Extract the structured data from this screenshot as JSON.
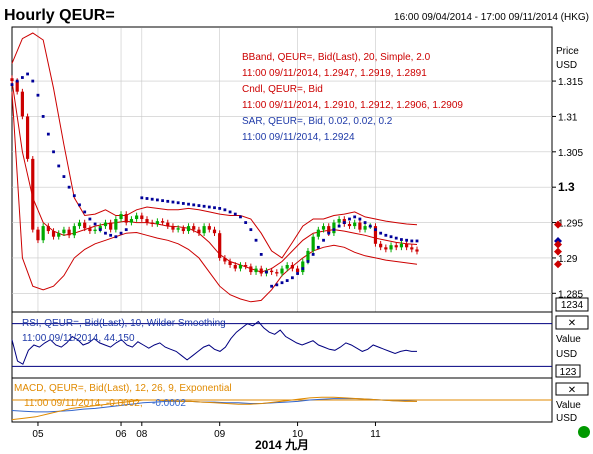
{
  "header": {
    "title": "Hourly QEUR=",
    "range": "16:00 09/04/2014 - 17:00 09/11/2014 (HKG)"
  },
  "colors": {
    "bband": "#cc0000",
    "candle_up": "#00aa00",
    "candle_down": "#cc0000",
    "sar": "#000099",
    "rsi": "#000080",
    "macd": "#e08a00",
    "signal": "#3366cc",
    "grid": "#c8c8c8",
    "status_ok": "#009900"
  },
  "main_panel": {
    "legend": [
      {
        "text": "BBand, QEUR=, Bid(Last),  20, Simple, 2.0",
        "color": "#cc0000"
      },
      {
        "text": "11:00 09/11/2014, 1.2947, 1.2919, 1.2891",
        "color": "#cc0000"
      },
      {
        "text": "Cndl, QEUR=, Bid",
        "color": "#cc0000"
      },
      {
        "text": "11:00 09/11/2014, 1.2910, 1.2912, 1.2906, 1.2909",
        "color": "#cc0000"
      },
      {
        "text": "SAR, QEUR=, Bid,  0.02, 0.02, 0.2",
        "color": "#1f3aa8"
      },
      {
        "text": "11:00 09/11/2014, 1.2924",
        "color": "#1f3aa8"
      }
    ],
    "axis_title_line1": "Price",
    "axis_title_line2": "USD",
    "ticks": [
      "1.315",
      "1.31",
      "1.305",
      "1.3",
      "1.295",
      "1.29",
      "1.285"
    ],
    "counter": "1234"
  },
  "rsi_panel": {
    "legend_line1": "RSI, QEUR=, Bid(Last),  10, Wilder Smoothing",
    "legend_line2": "11:00 09/11/2014, 44.150",
    "axis_title_line1": "Value",
    "axis_title_line2": "USD",
    "counter": "123"
  },
  "macd_panel": {
    "legend_line1": "MACD, QEUR=, Bid(Last),  12, 26, 9, Exponential",
    "legend_line2_a": "11:00 09/11/2014, -0.0002,",
    "legend_line2_b": "-0.0002",
    "axis_title_line1": "Value",
    "axis_title_line2": "USD"
  },
  "x_axis": {
    "ticks": [
      "05",
      "06",
      "08",
      "09",
      "10",
      "11"
    ],
    "title": "2014 九月"
  },
  "chart_data": {
    "type": "line",
    "price_axis": {
      "range": [
        1.2825,
        1.3225
      ],
      "ticks": [
        1.315,
        1.31,
        1.305,
        1.3,
        1.295,
        1.29,
        1.285
      ]
    },
    "x_range": [
      0,
      104
    ],
    "x_ticks": [
      {
        "label": "05",
        "x": 5
      },
      {
        "label": "06",
        "x": 21
      },
      {
        "label": "08",
        "x": 25
      },
      {
        "label": "09",
        "x": 40
      },
      {
        "label": "10",
        "x": 55
      },
      {
        "label": "11",
        "x": 70
      }
    ],
    "series": [
      {
        "name": "BBand",
        "x": [
          0,
          2,
          4,
          6,
          8,
          10,
          12,
          14,
          16,
          18,
          20,
          22,
          24,
          26,
          28,
          30,
          32,
          34,
          36,
          38,
          40,
          42,
          44,
          46,
          48,
          50,
          52,
          54,
          56,
          58,
          60,
          62,
          64,
          66,
          68,
          70,
          72,
          74,
          76,
          78
        ],
        "values": [
          1.3175,
          1.321,
          1.3218,
          1.3208,
          1.314,
          1.306,
          1.2985,
          1.296,
          1.2962,
          1.2968,
          1.296,
          1.296,
          1.2968,
          1.2972,
          1.297,
          1.2968,
          1.2968,
          1.297,
          1.2968,
          1.2965,
          1.2962,
          1.296,
          1.296,
          1.2955,
          1.2935,
          1.291,
          1.29,
          1.2922,
          1.2945,
          1.2955,
          1.2955,
          1.296,
          1.2962,
          1.2965,
          1.2958,
          1.2955,
          1.2952,
          1.295,
          1.2948,
          1.2947
        ]
      },
      {
        "name": "",
        "x": [
          0,
          2,
          4,
          6,
          8,
          10,
          12,
          14,
          16,
          18,
          20,
          22,
          24,
          26,
          28,
          30,
          32,
          34,
          36,
          38,
          40,
          42,
          44,
          46,
          48,
          50,
          52,
          54,
          56,
          58,
          60,
          62,
          64,
          66,
          68,
          70,
          72,
          74,
          76,
          78
        ],
        "values": [
          1.315,
          1.305,
          1.2985,
          1.295,
          1.2938,
          1.2932,
          1.2935,
          1.294,
          1.2945,
          1.2948,
          1.295,
          1.2952,
          1.295,
          1.295,
          1.2948,
          1.2945,
          1.2944,
          1.2942,
          1.2935,
          1.2922,
          1.2905,
          1.2895,
          1.289,
          1.2885,
          1.288,
          1.2885,
          1.2895,
          1.291,
          1.2925,
          1.2935,
          1.2938,
          1.294,
          1.2938,
          1.2935,
          1.2932,
          1.2928,
          1.2925,
          1.2922,
          1.292,
          1.2919
        ]
      },
      {
        "name": "",
        "x": [
          0,
          2,
          4,
          6,
          8,
          10,
          12,
          14,
          16,
          18,
          20,
          22,
          24,
          26,
          28,
          30,
          32,
          34,
          36,
          38,
          40,
          42,
          44,
          46,
          48,
          50,
          52,
          54,
          56,
          58,
          60,
          62,
          64,
          66,
          68,
          70,
          72,
          74,
          76,
          78
        ],
        "values": [
          1.3135,
          1.29,
          1.286,
          1.2855,
          1.286,
          1.2875,
          1.29,
          1.2912,
          1.292,
          1.2925,
          1.293,
          1.2935,
          1.2936,
          1.2932,
          1.2928,
          1.2925,
          1.292,
          1.2912,
          1.29,
          1.288,
          1.286,
          1.2848,
          1.2842,
          1.2838,
          1.284,
          1.2855,
          1.2875,
          1.2888,
          1.29,
          1.291,
          1.2915,
          1.2918,
          1.2915,
          1.2908,
          1.2903,
          1.29,
          1.2897,
          1.2895,
          1.2893,
          1.2891
        ]
      },
      {
        "name": "Cndl",
        "x": [
          0,
          1,
          2,
          3,
          4,
          5,
          6,
          7,
          8,
          9,
          10,
          11,
          12,
          13,
          14,
          15,
          16,
          17,
          18,
          19,
          20,
          21,
          22,
          23,
          24,
          25,
          26,
          27,
          28,
          29,
          30,
          31,
          32,
          33,
          34,
          35,
          36,
          37,
          38,
          39,
          40,
          41,
          42,
          43,
          44,
          45,
          46,
          47,
          48,
          49,
          50,
          51,
          52,
          53,
          54,
          55,
          56,
          57,
          58,
          59,
          60,
          61,
          62,
          63,
          64,
          65,
          66,
          67,
          68,
          69,
          70,
          71,
          72,
          73,
          74,
          75,
          76,
          77,
          78
        ],
        "values": [
          1.315,
          1.3135,
          1.31,
          1.304,
          1.294,
          1.2925,
          1.2945,
          1.2938,
          1.293,
          1.2935,
          1.294,
          1.2932,
          1.2945,
          1.295,
          1.2942,
          1.2938,
          1.294,
          1.2945,
          1.295,
          1.294,
          1.2955,
          1.2962,
          1.295,
          1.2955,
          1.296,
          1.2955,
          1.295,
          1.2948,
          1.2952,
          1.295,
          1.2945,
          1.294,
          1.2942,
          1.2938,
          1.2945,
          1.294,
          1.2935,
          1.2945,
          1.294,
          1.2935,
          1.29,
          1.2895,
          1.289,
          1.2885,
          1.289,
          1.2888,
          1.288,
          1.2885,
          1.2878,
          1.2882,
          1.288,
          1.2878,
          1.2885,
          1.289,
          1.2885,
          1.288,
          1.2895,
          1.291,
          1.293,
          1.294,
          1.2945,
          1.2935,
          1.295,
          1.2955,
          1.2948,
          1.2945,
          1.295,
          1.294,
          1.2945,
          1.2945,
          1.292,
          1.2915,
          1.2912,
          1.2918,
          1.2915,
          1.292,
          1.2915,
          1.2912,
          1.2909
        ]
      },
      {
        "name": "SAR",
        "x": [
          0,
          1,
          2,
          3,
          4,
          5,
          6,
          7,
          8,
          9,
          10,
          11,
          12,
          13,
          14,
          15,
          16,
          17,
          18,
          19,
          20,
          21,
          22,
          25,
          26,
          27,
          28,
          29,
          30,
          31,
          32,
          33,
          34,
          35,
          36,
          37,
          38,
          39,
          40,
          41,
          42,
          43,
          44,
          45,
          46,
          47,
          48,
          49,
          50,
          51,
          52,
          53,
          54,
          55,
          56,
          57,
          58,
          59,
          60,
          61,
          62,
          63,
          64,
          65,
          66,
          67,
          68,
          69,
          70,
          71,
          72,
          73,
          74,
          75,
          76,
          77,
          78
        ],
        "values": [
          1.3145,
          1.315,
          1.3155,
          1.316,
          1.315,
          1.313,
          1.31,
          1.3075,
          1.305,
          1.303,
          1.3015,
          1.3,
          1.2988,
          1.2975,
          1.2965,
          1.2955,
          1.2948,
          1.294,
          1.2935,
          1.2932,
          1.293,
          1.2935,
          1.294,
          1.2985,
          1.2984,
          1.2983,
          1.2982,
          1.2981,
          1.298,
          1.2979,
          1.2978,
          1.2977,
          1.2976,
          1.2975,
          1.2974,
          1.2973,
          1.2972,
          1.2971,
          1.297,
          1.2968,
          1.2965,
          1.2962,
          1.2958,
          1.295,
          1.294,
          1.2925,
          1.2905,
          1.288,
          1.286,
          1.2862,
          1.2865,
          1.2868,
          1.2872,
          1.2878,
          1.2885,
          1.2895,
          1.2905,
          1.2915,
          1.2925,
          1.2935,
          1.294,
          1.2945,
          1.295,
          1.2955,
          1.2958,
          1.2955,
          1.295,
          1.2945,
          1.294,
          1.2935,
          1.2932,
          1.293,
          1.2928,
          1.2926,
          1.2925,
          1.2924,
          1.2924
        ]
      }
    ],
    "markers": [
      {
        "label": "BBand upper",
        "value": 1.2947
      },
      {
        "label": "SAR",
        "value": 1.2924
      },
      {
        "label": "BBand mid",
        "value": 1.2919
      },
      {
        "label": "Close",
        "value": 1.2909
      },
      {
        "label": "BBand lower",
        "value": 1.2891
      }
    ],
    "rsi": {
      "name": "RSI",
      "last": 44.15,
      "levels": [
        70,
        30
      ],
      "range": [
        20,
        80
      ],
      "values": [
        55,
        35,
        32,
        45,
        50,
        48,
        52,
        55,
        50,
        48,
        52,
        58,
        55,
        50,
        52,
        56,
        52,
        50,
        48,
        52,
        55,
        50,
        48,
        53,
        50,
        47,
        50,
        52,
        48,
        46,
        44,
        40,
        36,
        40,
        44,
        48,
        50,
        46,
        44,
        48,
        56,
        62,
        66,
        70,
        68,
        72,
        66,
        62,
        60,
        64,
        58,
        55,
        52,
        50,
        52,
        54,
        50,
        48,
        46,
        45,
        48,
        52,
        50,
        47,
        44,
        46,
        50,
        48,
        46,
        44,
        42,
        44,
        45,
        44,
        44
      ]
    },
    "macd": {
      "name": "MACD",
      "last": -0.0002,
      "signal_last": -0.0002,
      "range": [
        -0.003,
        0.003
      ],
      "values": [
        -0.0028,
        -0.0026,
        -0.0024,
        -0.002,
        -0.0016,
        -0.0012,
        -0.001,
        -0.0008,
        -0.0006,
        -0.0004,
        -0.0002,
        0.0,
        0.0,
        -0.0001,
        -0.0002,
        -0.0002,
        -0.0003,
        -0.0004,
        -0.0005,
        -0.0006,
        -0.0006,
        -0.0005,
        -0.0003,
        -0.0001,
        0.0001,
        0.0003,
        0.0004,
        0.0004,
        0.0003,
        0.0002,
        0.0001,
        0.0,
        -0.0001,
        -0.0002,
        -0.0002
      ],
      "signal": [
        -0.0015,
        -0.0016,
        -0.0017,
        -0.0017,
        -0.0016,
        -0.0015,
        -0.0013,
        -0.0012,
        -0.001,
        -0.0008,
        -0.0006,
        -0.0004,
        -0.0003,
        -0.0002,
        -0.0002,
        -0.0002,
        -0.0003,
        -0.0003,
        -0.0004,
        -0.0004,
        -0.0005,
        -0.0005,
        -0.0004,
        -0.0003,
        -0.0002,
        0.0,
        0.0001,
        0.0002,
        0.0002,
        0.0002,
        0.0001,
        0.0,
        -0.0001,
        -0.0001,
        -0.0002
      ]
    }
  }
}
